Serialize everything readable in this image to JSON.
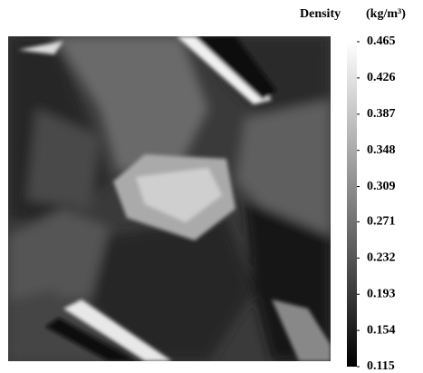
{
  "chart_data": {
    "type": "heatmap",
    "title": "Density",
    "unit": "(kg/m³)",
    "clim": [
      0.115,
      0.465
    ],
    "cticks": [
      0.465,
      0.426,
      0.387,
      0.348,
      0.309,
      0.271,
      0.232,
      0.193,
      0.154,
      0.115
    ]
  }
}
